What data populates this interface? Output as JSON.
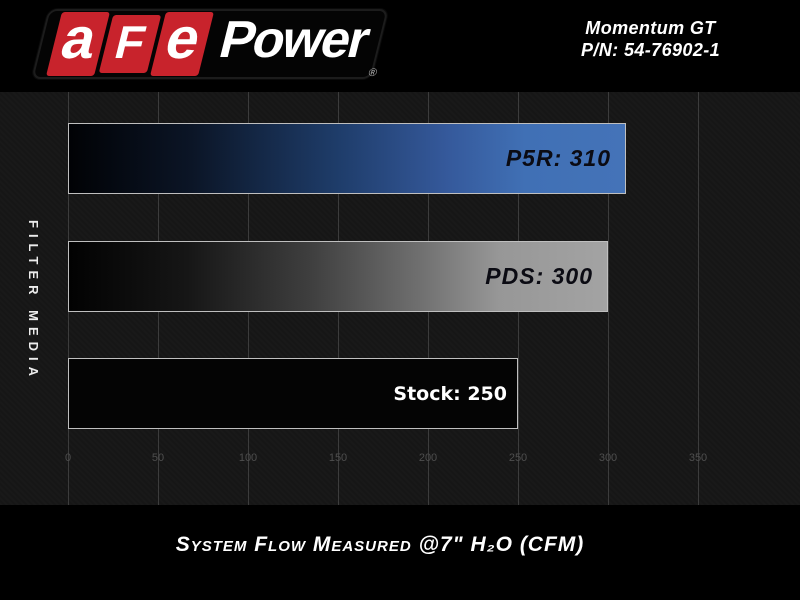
{
  "header": {
    "logo": {
      "tiles": [
        "a",
        "F",
        "e"
      ],
      "wordmark": "Power",
      "registered": "®",
      "red": "#c8232c"
    },
    "product_line": "Momentum GT",
    "part_number": "P/N: 54-76902-1"
  },
  "chart": {
    "y_axis_label": "FILTER MEDIA",
    "bars": [
      {
        "name": "P5R",
        "label": "P5R: 310",
        "value": 310
      },
      {
        "name": "PDS",
        "label": "PDS: 300",
        "value": 300
      },
      {
        "name": "Stock",
        "label": "Stock: 250",
        "value": 250
      }
    ],
    "x_ticks": [
      0,
      50,
      100,
      150,
      200,
      250,
      300,
      350
    ],
    "x_max": 400
  },
  "footer": {
    "caption": "System Flow Measured @7\" H₂O (CFM)"
  },
  "chart_data": {
    "type": "bar",
    "orientation": "horizontal",
    "categories": [
      "P5R",
      "PDS",
      "Stock"
    ],
    "values": [
      310,
      300,
      250
    ],
    "data_labels": [
      "P5R: 310",
      "PDS: 300",
      "Stock: 250"
    ],
    "title": "",
    "xlabel": "System Flow Measured @7\" H₂O (CFM)",
    "ylabel": "FILTER MEDIA",
    "xlim": [
      0,
      400
    ],
    "xticks": [
      0,
      50,
      100,
      150,
      200,
      250,
      300,
      350
    ],
    "grid": true,
    "legend": false,
    "bar_styles": [
      {
        "fill": "gradient",
        "from": "#000000",
        "to": "#4473b8",
        "label_color": "#0b0b13"
      },
      {
        "fill": "gradient",
        "from": "#000000",
        "to": "#a3a3a3",
        "label_color": "#0b0b13"
      },
      {
        "fill": "solid",
        "color": "#040404",
        "label_color": "#ffffff"
      }
    ],
    "colors": {
      "panel": "#000000",
      "plot_background": "#161616",
      "bar_border": "#bfbfbf",
      "gridline": "#3c3c3c",
      "tick_label": "#4e4e4e",
      "accent_red": "#c8232c",
      "accent_blue": "#4473b8"
    }
  }
}
